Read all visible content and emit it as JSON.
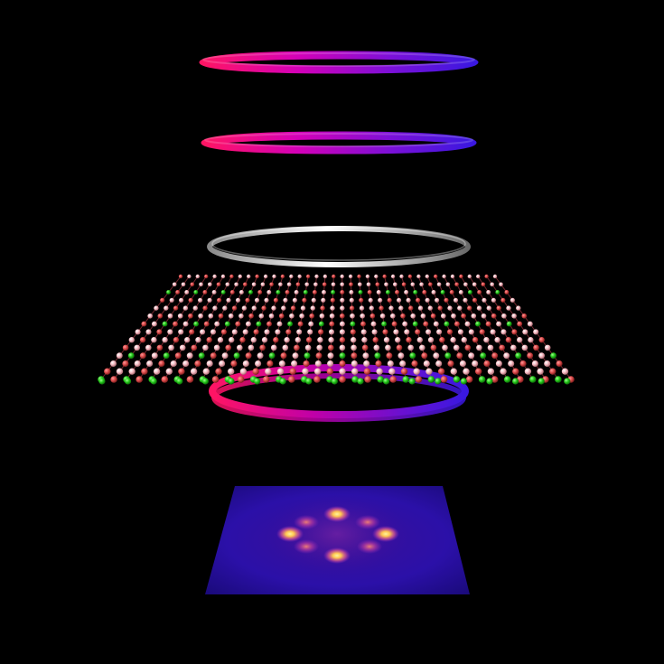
{
  "scene": {
    "background": "#000000",
    "rings": [
      {
        "name": "top-pump-ring",
        "gradient": [
          "#ff1464",
          "#d400b8",
          "#7a10d8",
          "#3a18e0"
        ]
      },
      {
        "name": "second-pump-ring",
        "gradient": [
          "#ff1464",
          "#d400b8",
          "#7a10d8",
          "#3a18e0"
        ]
      },
      {
        "name": "probe-ring",
        "gradient": [
          "#9a9a9a",
          "#ffffff",
          "#7a7a7a"
        ]
      },
      {
        "name": "transmitted-ring",
        "gradient": [
          "#ff1464",
          "#c000a8",
          "#6a10d0",
          "#3a18e0"
        ]
      }
    ],
    "crystal": {
      "atom_colors": [
        "#d84848",
        "#f4b8c0",
        "#22c418"
      ],
      "bond_color": "#c84450"
    },
    "detector": {
      "background_colors": [
        "#1a0a7a",
        "#2b10a8",
        "#3a0f98"
      ],
      "spot_colors": [
        "#ffe070",
        "#ff9a40",
        "#d040a0"
      ],
      "spot_count": 8
    }
  }
}
